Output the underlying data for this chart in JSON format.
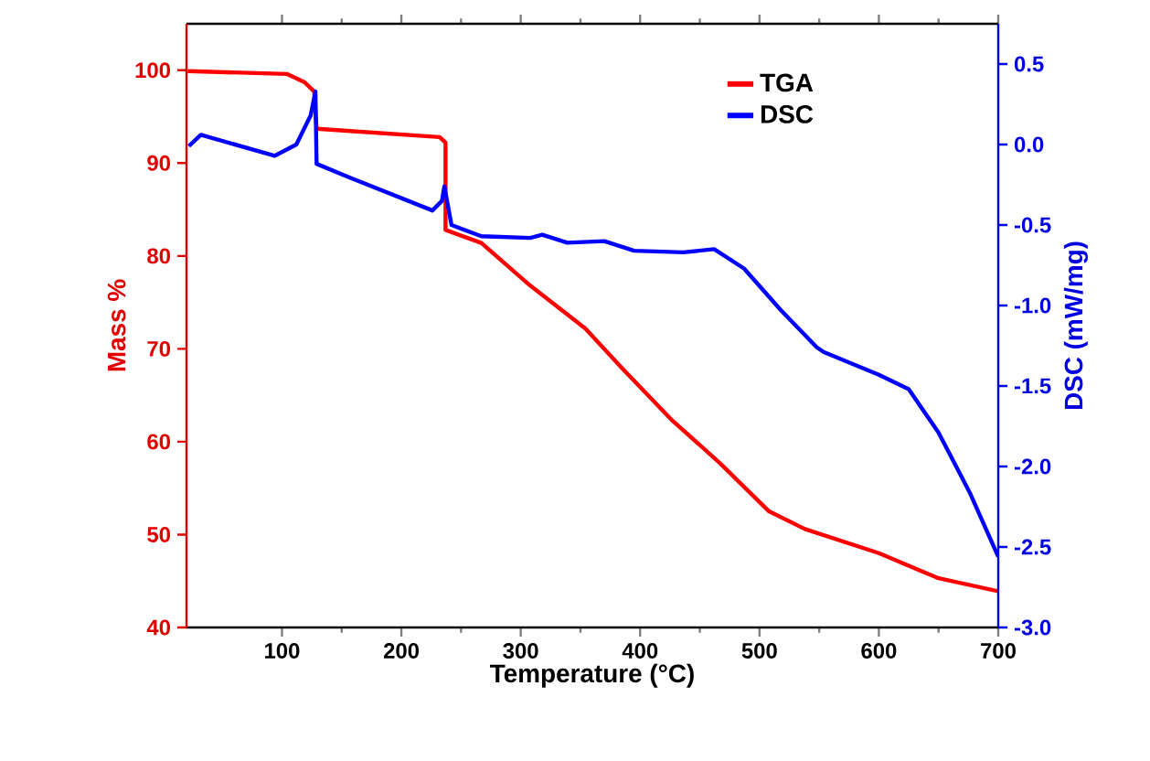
{
  "chart_data": {
    "type": "line",
    "xlabel": "Temperature (°C)",
    "ylabel": "Mass %",
    "y2label": "DSC (mW/mg)",
    "xlim": [
      20,
      700
    ],
    "xticks": [
      100,
      200,
      300,
      400,
      500,
      600,
      700
    ],
    "ylim": [
      40,
      105
    ],
    "yticks": [
      40,
      50,
      60,
      70,
      80,
      90,
      100
    ],
    "y2lim": [
      -3,
      0.75
    ],
    "y2ticks": [
      {
        "value": -3,
        "label": "-3.0"
      },
      {
        "value": -2.5,
        "label": "-2.5"
      },
      {
        "value": -2,
        "label": "-2.0"
      },
      {
        "value": -1.5,
        "label": "-1.5"
      },
      {
        "value": -1,
        "label": "-1.0"
      },
      {
        "value": -0.5,
        "label": "-0.5"
      },
      {
        "value": 0,
        "label": "0.0"
      },
      {
        "value": 0.5,
        "label": "0.5"
      }
    ],
    "legend": "top right",
    "grid": false,
    "marker": "none",
    "line_style": "solid",
    "series": [
      {
        "name": "TGA",
        "color": "#ff0000",
        "x": [
          21,
          104,
          119,
          127,
          129,
          232,
          237,
          237,
          267,
          308,
          354,
          385,
          426,
          466,
          508,
          538,
          600,
          650,
          700
        ],
        "values": [
          99.9,
          99.6,
          98.7,
          97.7,
          93.7,
          92.8,
          92.2,
          82.8,
          81.4,
          76.8,
          72.2,
          67.9,
          62.4,
          57.8,
          52.5,
          50.6,
          48,
          45.3,
          43.9
        ]
      },
      {
        "name": "DSC",
        "color": "#0000ff",
        "axis": "y2",
        "x": [
          22,
          32,
          94,
          112,
          124,
          128,
          129,
          155,
          226,
          234,
          236,
          242,
          267,
          308,
          318,
          339,
          370,
          395,
          436,
          462,
          487,
          518,
          548,
          554,
          600,
          625,
          650,
          676,
          700
        ],
        "values": [
          -0.01,
          0.06,
          -0.07,
          0.0,
          0.18,
          0.33,
          -0.12,
          -0.2,
          -0.41,
          -0.35,
          -0.26,
          -0.5,
          -0.57,
          -0.58,
          -0.56,
          -0.61,
          -0.6,
          -0.66,
          -0.67,
          -0.65,
          -0.77,
          -1.03,
          -1.26,
          -1.29,
          -1.43,
          -1.52,
          -1.79,
          -2.16,
          -2.56
        ]
      }
    ]
  }
}
